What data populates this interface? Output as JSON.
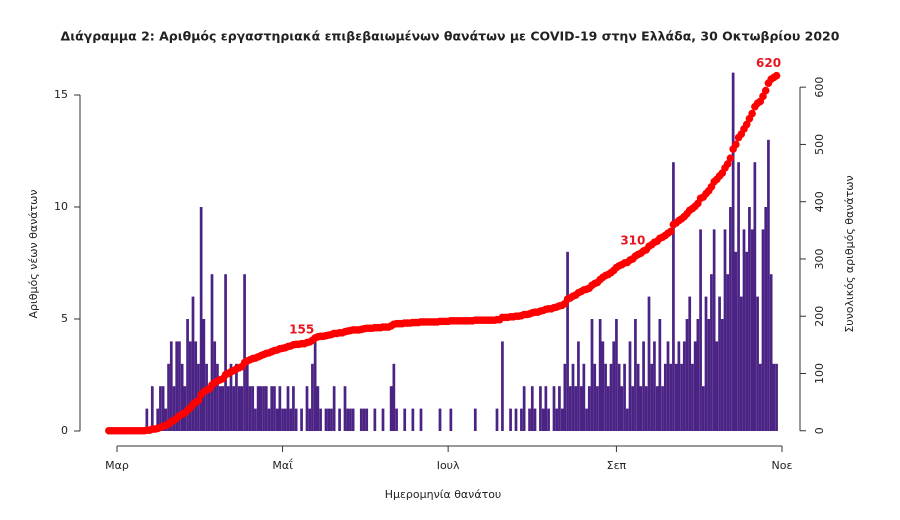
{
  "chart_data": {
    "type": "bar",
    "title": "Διάγραμμα 2: Αριθμός εργαστηριακά επιβεβαιωμένων θανάτων με COVID-19 στην Ελλάδα, 30 Οκτωβρίου 2020",
    "x_label": "Ημερομηνία θανάτου",
    "y_label": "Αριθμός νέων θανάτων",
    "y2_label": "Συνολικός αριθμός θανάτων",
    "x": [
      -3,
      -2,
      -1,
      0,
      1,
      2,
      3,
      4,
      5,
      6,
      7,
      8,
      9,
      10,
      11,
      12,
      13,
      14,
      15,
      16,
      17,
      18,
      19,
      20,
      21,
      22,
      23,
      24,
      25,
      26,
      27,
      28,
      29,
      30,
      31,
      32,
      33,
      34,
      35,
      36,
      37,
      38,
      39,
      40,
      41,
      42,
      43,
      44,
      45,
      46,
      47,
      48,
      49,
      50,
      51,
      52,
      53,
      54,
      55,
      56,
      57,
      58,
      59,
      60,
      61,
      62,
      63,
      64,
      65,
      66,
      67,
      68,
      69,
      70,
      71,
      72,
      73,
      74,
      75,
      76,
      77,
      78,
      79,
      80,
      81,
      82,
      83,
      84,
      85,
      86,
      87,
      88,
      89,
      90,
      91,
      92,
      93,
      94,
      95,
      96,
      97,
      98,
      99,
      100,
      101,
      102,
      103,
      104,
      105,
      106,
      107,
      108,
      109,
      110,
      111,
      112,
      113,
      114,
      115,
      116,
      117,
      118,
      119,
      120,
      121,
      122,
      123,
      124,
      125,
      126,
      127,
      128,
      129,
      130,
      131,
      132,
      133,
      134,
      135,
      136,
      137,
      138,
      139,
      140,
      141,
      142,
      143,
      144,
      145,
      146,
      147,
      148,
      149,
      150,
      151,
      152,
      153,
      154,
      155,
      156,
      157,
      158,
      159,
      160,
      161,
      162,
      163,
      164,
      165,
      166,
      167,
      168,
      169,
      170,
      171,
      172,
      173,
      174,
      175,
      176,
      177,
      178,
      179,
      180,
      181,
      182,
      183,
      184,
      185,
      186,
      187,
      188,
      189,
      190,
      191,
      192,
      193,
      194,
      195,
      196,
      197,
      198,
      199,
      200,
      201,
      202,
      203,
      204,
      205,
      206,
      207,
      208,
      209,
      210,
      211,
      212,
      213,
      214,
      215,
      216,
      217,
      218,
      219,
      220,
      221,
      222,
      223,
      224,
      225,
      226,
      227,
      228,
      229,
      230,
      231,
      232,
      233,
      234,
      235,
      236,
      237,
      238,
      239,
      240,
      241,
      242,
      243
    ],
    "series": [
      {
        "type": "bar",
        "color": "#4b2384",
        "values": [
          0,
          0,
          0,
          0,
          0,
          0,
          0,
          0,
          0,
          0,
          0,
          0,
          0,
          0,
          1,
          0,
          2,
          0,
          1,
          2,
          2,
          1,
          3,
          4,
          2,
          4,
          4,
          3,
          2,
          5,
          4,
          6,
          4,
          3,
          10,
          5,
          3,
          2,
          7,
          4,
          3,
          2,
          2,
          7,
          2,
          3,
          2,
          3,
          2,
          2,
          7,
          3,
          2,
          2,
          1,
          2,
          2,
          2,
          2,
          1,
          2,
          2,
          1,
          2,
          1,
          1,
          2,
          1,
          2,
          1,
          0,
          1,
          0,
          2,
          1,
          3,
          4,
          2,
          1,
          0,
          1,
          1,
          1,
          2,
          0,
          1,
          0,
          2,
          1,
          1,
          1,
          0,
          0,
          1,
          1,
          1,
          0,
          0,
          1,
          0,
          0,
          1,
          0,
          0,
          2,
          3,
          1,
          0,
          0,
          1,
          0,
          0,
          1,
          0,
          0,
          1,
          0,
          0,
          0,
          0,
          0,
          0,
          1,
          0,
          0,
          0,
          1,
          0,
          0,
          0,
          0,
          0,
          0,
          0,
          0,
          1,
          0,
          0,
          0,
          0,
          0,
          0,
          0,
          1,
          0,
          4,
          0,
          0,
          1,
          0,
          1,
          0,
          1,
          2,
          0,
          1,
          2,
          1,
          0,
          2,
          1,
          2,
          1,
          0,
          2,
          1,
          2,
          1,
          3,
          8,
          2,
          3,
          2,
          4,
          2,
          3,
          1,
          2,
          5,
          3,
          2,
          5,
          4,
          3,
          2,
          3,
          4,
          5,
          3,
          2,
          3,
          1,
          4,
          2,
          5,
          3,
          2,
          4,
          2,
          6,
          3,
          4,
          2,
          5,
          2,
          3,
          4,
          3,
          12,
          3,
          4,
          3,
          4,
          5,
          6,
          3,
          4,
          5,
          9,
          2,
          6,
          5,
          7,
          9,
          4,
          6,
          5,
          9,
          7,
          10,
          16,
          8,
          12,
          6,
          9,
          8,
          10,
          9,
          12,
          6,
          3,
          9,
          10,
          13,
          7,
          3,
          3
        ]
      },
      {
        "type": "scatter",
        "axis": "y2",
        "color": "#ff0000",
        "values": [
          0,
          0,
          0,
          0,
          0,
          0,
          0,
          0,
          0,
          0,
          0,
          0,
          0,
          0,
          1,
          1,
          3,
          3,
          4,
          6,
          8,
          9,
          12,
          16,
          18,
          22,
          26,
          29,
          31,
          36,
          40,
          46,
          50,
          53,
          63,
          68,
          71,
          73,
          80,
          84,
          87,
          89,
          91,
          98,
          100,
          103,
          105,
          108,
          110,
          112,
          119,
          122,
          124,
          126,
          127,
          129,
          131,
          133,
          135,
          136,
          138,
          140,
          141,
          143,
          144,
          145,
          147,
          148,
          150,
          151,
          151,
          152,
          152,
          154,
          155,
          158,
          162,
          164,
          165,
          165,
          166,
          167,
          168,
          170,
          170,
          171,
          171,
          173,
          174,
          175,
          176,
          176,
          176,
          177,
          178,
          179,
          179,
          179,
          180,
          180,
          180,
          181,
          181,
          181,
          183,
          186,
          187,
          187,
          187,
          188,
          188,
          188,
          189,
          189,
          189,
          190,
          190,
          190,
          190,
          190,
          190,
          190,
          191,
          191,
          191,
          191,
          192,
          192,
          192,
          192,
          192,
          192,
          192,
          192,
          192,
          193,
          193,
          193,
          193,
          193,
          193,
          193,
          193,
          194,
          194,
          198,
          198,
          198,
          199,
          199,
          200,
          200,
          201,
          203,
          203,
          204,
          206,
          207,
          207,
          209,
          210,
          212,
          213,
          213,
          215,
          216,
          218,
          219,
          222,
          230,
          232,
          235,
          237,
          241,
          243,
          246,
          247,
          249,
          254,
          257,
          259,
          264,
          268,
          271,
          273,
          276,
          280,
          285,
          288,
          290,
          293,
          294,
          298,
          300,
          305,
          308,
          310,
          314,
          316,
          322,
          325,
          329,
          331,
          336,
          338,
          341,
          345,
          348,
          360,
          363,
          367,
          370,
          374,
          379,
          385,
          388,
          392,
          397,
          406,
          408,
          414,
          419,
          426,
          435,
          439,
          445,
          450,
          459,
          466,
          476,
          492,
          500,
          512,
          518,
          527,
          535,
          545,
          554,
          566,
          572,
          575,
          584,
          594,
          607,
          614,
          617,
          620
        ]
      }
    ],
    "annotations": [
      {
        "text": "155",
        "x": 71,
        "y": 155
      },
      {
        "text": "310",
        "x": 193,
        "y": 310
      },
      {
        "text": "620",
        "x": 243,
        "y": 620
      }
    ],
    "annotation_color": "#e8141e",
    "xlim": [
      -14,
      252
    ],
    "xticks": [
      {
        "value": 0,
        "label": "Μαρ"
      },
      {
        "value": 61,
        "label": "Μαΐ"
      },
      {
        "value": 122,
        "label": "Ιουλ"
      },
      {
        "value": 184,
        "label": "Σεπ"
      },
      {
        "value": 245,
        "label": "Νοε"
      }
    ],
    "ylim": [
      -0.5,
      16.5
    ],
    "yticks": [
      0,
      5,
      10,
      15
    ],
    "y2lim": [
      -20,
      645
    ],
    "y2ticks": [
      0,
      100,
      200,
      300,
      400,
      500,
      600
    ]
  }
}
